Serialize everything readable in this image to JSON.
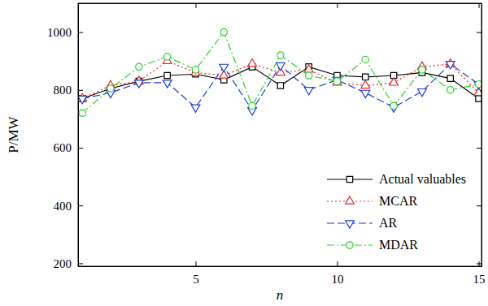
{
  "chart_data": {
    "type": "line",
    "x_label": "n",
    "y_label": "P/MW",
    "x": [
      1,
      2,
      3,
      4,
      5,
      6,
      7,
      8,
      9,
      10,
      11,
      12,
      13,
      14,
      15
    ],
    "xlim": [
      0.85,
      15.1
    ],
    "xticks": [
      5,
      10,
      15
    ],
    "ylim": [
      190,
      1100
    ],
    "yticks": [
      200,
      400,
      600,
      800,
      1000
    ],
    "legend": "lower-right",
    "series": [
      {
        "name": "Actual valuables",
        "color": "#000000",
        "marker": "square",
        "line_style": "solid",
        "values": [
          770,
          805,
          830,
          850,
          855,
          835,
          880,
          815,
          880,
          850,
          845,
          850,
          860,
          840,
          770
        ]
      },
      {
        "name": "MCAR",
        "color": "#e8262b",
        "marker": "triangle-up",
        "line_style": "dotted",
        "values": [
          770,
          815,
          830,
          900,
          860,
          850,
          890,
          860,
          870,
          825,
          815,
          825,
          880,
          890,
          790
        ]
      },
      {
        "name": "AR",
        "color": "#1c3fd8",
        "marker": "triangle-down",
        "line_style": "dashed",
        "values": [
          770,
          790,
          825,
          825,
          740,
          880,
          730,
          885,
          800,
          835,
          790,
          740,
          795,
          890,
          820
        ]
      },
      {
        "name": "MDAR",
        "color": "#2bd12b",
        "marker": "circle",
        "line_style": "dashdot",
        "values": [
          720,
          805,
          880,
          915,
          870,
          1000,
          745,
          920,
          850,
          830,
          905,
          745,
          870,
          800,
          820
        ]
      }
    ]
  }
}
